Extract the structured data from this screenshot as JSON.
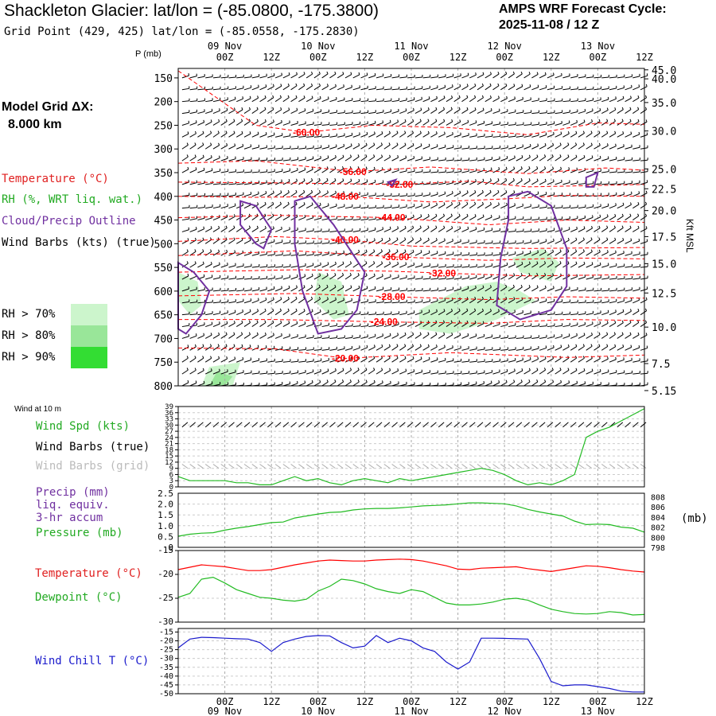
{
  "header": {
    "title": "Shackleton Glacier:  lat/lon = (-85.0800, -175.3800)",
    "grid_point": "Grid Point (429, 425) lat/lon = (-85.0558, -175.2830)",
    "cycle_title": "AMPS WRF Forecast Cycle:",
    "cycle_date": "2025-11-08 / 12  Z"
  },
  "legend": {
    "model_grid_label": "Model Grid ΔX:",
    "model_grid_value": "8.000 km",
    "temperature": "Temperature (°C)",
    "rh": "RH (%, WRT liq. wat.)",
    "cloud": "Cloud/Precip Outline",
    "wind_barbs": "Wind Barbs (kts) (true)",
    "rh70": "RH > 70%",
    "rh80": "RH > 80%",
    "rh90": "RH > 90%"
  },
  "colors": {
    "temperature": "#ff0000",
    "rh70": "#ccf5cc",
    "rh80": "#99e699",
    "rh90": "#33dd33",
    "cloud": "#7030a0",
    "wind_spd": "#22bb22",
    "grid_barbs": "#aaaaaa",
    "precip": "#7030a0",
    "pressure": "#22bb22",
    "dewpoint": "#22bb22",
    "wind_chill": "#1a1acc"
  },
  "time_axis": {
    "hour_labels": [
      "00Z",
      "12Z",
      "00Z",
      "12Z",
      "00Z",
      "12Z",
      "00Z",
      "12Z",
      "00Z",
      "12Z"
    ],
    "hour_values": [
      12,
      24,
      36,
      48,
      60,
      72,
      84,
      96,
      108,
      120
    ],
    "day_labels": [
      "09 Nov",
      "10 Nov",
      "11 Nov",
      "12 Nov",
      "13 Nov"
    ],
    "day_values": [
      12,
      36,
      60,
      84,
      108
    ],
    "range": [
      0,
      120
    ]
  },
  "chart_data": [
    {
      "type": "heatmap",
      "title": "Time-height cross section",
      "ylabel_left": "P (mb)",
      "ylabel_right": "Kft MSL",
      "ylim": [
        800,
        130
      ],
      "pressure_ticks": [
        150,
        200,
        250,
        300,
        350,
        400,
        450,
        500,
        550,
        600,
        650,
        700,
        750,
        800
      ],
      "height_ticks": [
        {
          "label": "45.0",
          "p": 133
        },
        {
          "label": "40.0",
          "p": 152
        },
        {
          "label": "35.0",
          "p": 202
        },
        {
          "label": "30.0",
          "p": 262
        },
        {
          "label": "25.0",
          "p": 342
        },
        {
          "label": "22.5",
          "p": 384
        },
        {
          "label": "20.0",
          "p": 430
        },
        {
          "label": "17.5",
          "p": 485
        },
        {
          "label": "15.0",
          "p": 542
        },
        {
          "label": "12.5",
          "p": 604
        },
        {
          "label": "10.0",
          "p": 676
        },
        {
          "label": "7.5",
          "p": 753
        },
        {
          "label": "5.15",
          "p": 810
        }
      ],
      "temperature_contours": [
        {
          "label": "-60.00",
          "t": [
            0,
            20,
            33,
            50,
            70,
            90,
            108,
            120
          ],
          "p": [
            135,
            250,
            265,
            250,
            255,
            270,
            245,
            248
          ],
          "label_t": 33,
          "label_p": 265
        },
        {
          "label": "-56.00",
          "t": [
            0,
            20,
            45,
            65,
            90,
            110,
            120
          ],
          "p": [
            330,
            325,
            348,
            338,
            352,
            340,
            345
          ],
          "label_t": 45,
          "label_p": 348
        },
        {
          "label": "-52.00",
          "t": [
            0,
            30,
            57,
            75,
            90,
            120
          ],
          "p": [
            370,
            372,
            375,
            368,
            380,
            375
          ],
          "label_t": 57,
          "label_p": 375
        },
        {
          "label": "-48.00",
          "t": [
            0,
            20,
            43,
            65,
            85,
            100,
            120
          ],
          "p": [
            400,
            402,
            400,
            412,
            405,
            398,
            400
          ],
          "label_t": 43,
          "label_p": 400
        },
        {
          "label": "-44.00",
          "t": [
            0,
            25,
            55,
            80,
            100,
            120
          ],
          "p": [
            445,
            440,
            445,
            460,
            450,
            455
          ],
          "label_t": 55,
          "label_p": 445
        },
        {
          "label": "-40.00",
          "t": [
            0,
            25,
            43,
            60,
            90,
            120
          ],
          "p": [
            495,
            485,
            492,
            505,
            510,
            508
          ],
          "label_t": 43,
          "label_p": 492
        },
        {
          "label": "-36.00",
          "t": [
            0,
            30,
            56,
            80,
            100,
            120
          ],
          "p": [
            525,
            515,
            528,
            535,
            530,
            532
          ],
          "label_t": 56,
          "label_p": 528
        },
        {
          "label": "-32.00",
          "t": [
            0,
            30,
            55,
            68,
            90,
            120
          ],
          "p": [
            560,
            555,
            558,
            562,
            568,
            565
          ],
          "label_t": 68,
          "label_p": 562
        },
        {
          "label": "-28.00",
          "t": [
            0,
            30,
            55,
            80,
            100,
            120
          ],
          "p": [
            610,
            605,
            612,
            618,
            612,
            615
          ],
          "label_t": 55,
          "label_p": 612
        },
        {
          "label": "-24.00",
          "t": [
            0,
            25,
            53,
            80,
            100,
            120
          ],
          "p": [
            660,
            660,
            665,
            668,
            660,
            662
          ],
          "label_t": 53,
          "label_p": 665
        },
        {
          "label": "-20.00",
          "t": [
            0,
            25,
            43,
            70,
            100,
            120
          ],
          "p": [
            720,
            722,
            742,
            730,
            740,
            735
          ],
          "label_t": 43,
          "label_p": 742
        }
      ],
      "rh_regions": [
        {
          "level": ">70%",
          "t": [
            0,
            5,
            6,
            3,
            0
          ],
          "p": [
            560,
            580,
            630,
            650,
            620
          ]
        },
        {
          "level": ">70%",
          "t": [
            36,
            42,
            44,
            40,
            35
          ],
          "p": [
            560,
            580,
            650,
            660,
            620
          ]
        },
        {
          "level": ">70%",
          "t": [
            62,
            74,
            82,
            88,
            92,
            82,
            70,
            62
          ],
          "p": [
            640,
            590,
            580,
            600,
            620,
            660,
            690,
            680
          ]
        },
        {
          "level": ">70%",
          "t": [
            86,
            94,
            98,
            96,
            88
          ],
          "p": [
            530,
            510,
            540,
            580,
            560
          ]
        },
        {
          "level": ">70%",
          "t": [
            8,
            16,
            14,
            6
          ],
          "p": [
            760,
            750,
            800,
            800
          ]
        },
        {
          "level": ">80%",
          "t": [
            10,
            14,
            12,
            8
          ],
          "p": [
            770,
            780,
            800,
            800
          ]
        }
      ],
      "cloud_outlines": [
        {
          "t": [
            0,
            4,
            8,
            6,
            2,
            0
          ],
          "p": [
            540,
            560,
            600,
            650,
            690,
            680
          ]
        },
        {
          "t": [
            16,
            20,
            24,
            22,
            20,
            16
          ],
          "p": [
            410,
            420,
            470,
            510,
            500,
            460
          ]
        },
        {
          "t": [
            30,
            34,
            40,
            48,
            46,
            42,
            36,
            32,
            30
          ],
          "p": [
            410,
            400,
            460,
            560,
            640,
            680,
            690,
            600,
            500
          ]
        },
        {
          "t": [
            54,
            56,
            55
          ],
          "p": [
            370,
            365,
            378
          ]
        },
        {
          "t": [
            85,
            90,
            96,
            100,
            100,
            96,
            88,
            82,
            83,
            85
          ],
          "p": [
            400,
            390,
            420,
            510,
            590,
            640,
            660,
            630,
            530,
            450
          ]
        },
        {
          "t": [
            105,
            108,
            107,
            105
          ],
          "p": [
            360,
            350,
            380,
            380
          ]
        }
      ],
      "barbs": {
        "t_step": 2,
        "p_levels": [
          150,
          175,
          200,
          225,
          250,
          275,
          300,
          325,
          350,
          375,
          400,
          425,
          450,
          475,
          500,
          525,
          550,
          575,
          600,
          625,
          650,
          675,
          700,
          725,
          750,
          775,
          800
        ]
      }
    },
    {
      "type": "line",
      "title": "Wind at 10 m",
      "legend": [
        "Wind Spd (kts)",
        "Wind Barbs (true)",
        "Wind Barbs (grid)"
      ],
      "y_ticks": [
        0,
        3,
        6,
        9,
        12,
        15,
        18,
        21,
        24,
        27,
        30,
        33,
        36,
        39
      ],
      "ylim": [
        0,
        39
      ],
      "series": [
        {
          "name": "Wind Spd (kts)",
          "t": [
            0,
            3,
            6,
            9,
            12,
            15,
            18,
            21,
            24,
            27,
            30,
            33,
            36,
            39,
            42,
            45,
            48,
            51,
            54,
            57,
            60,
            63,
            66,
            69,
            72,
            75,
            78,
            81,
            84,
            87,
            90,
            93,
            96,
            99,
            102,
            105,
            108,
            111,
            114,
            117,
            120
          ],
          "values": [
            5,
            3,
            3,
            3,
            3,
            2,
            2,
            1,
            1,
            3,
            5,
            3,
            4,
            2,
            1,
            3,
            4,
            3,
            2,
            4,
            3,
            4,
            5,
            6,
            7,
            8,
            9,
            8,
            6,
            3,
            1,
            2,
            1,
            3,
            6,
            24,
            27,
            29,
            32,
            35,
            38
          ]
        }
      ]
    },
    {
      "type": "line",
      "title": "Precip / Pressure",
      "legend": [
        "Precip (mm)",
        "liq. equiv.",
        "3-hr accum",
        "Pressure (mb)"
      ],
      "y_left_ticks": [
        "0",
        "0.5",
        "1.0",
        "1.5",
        "2.0",
        "2.5"
      ],
      "y_right_ticks": [
        "798",
        "800",
        "802",
        "804",
        "806",
        "808"
      ],
      "ylim_left": [
        0,
        2.5
      ],
      "ylim_right": [
        798,
        808.7
      ],
      "right_label": "(mb)",
      "series": [
        {
          "name": "Pressure (mb)",
          "t": [
            0,
            3,
            6,
            9,
            12,
            15,
            18,
            21,
            24,
            27,
            30,
            33,
            36,
            39,
            42,
            45,
            48,
            51,
            54,
            57,
            60,
            63,
            66,
            69,
            72,
            75,
            78,
            81,
            84,
            87,
            90,
            93,
            96,
            99,
            102,
            105,
            108,
            111,
            114,
            117,
            120
          ],
          "values": [
            800.2,
            800.6,
            800.8,
            800.9,
            801.4,
            801.8,
            802.1,
            802.5,
            802.9,
            803.0,
            803.8,
            804.2,
            804.6,
            804.9,
            805.0,
            805.4,
            805.6,
            805.7,
            805.7,
            805.8,
            806.0,
            806.2,
            806.3,
            806.4,
            806.6,
            806.8,
            806.8,
            806.7,
            806.6,
            806.2,
            805.5,
            805.0,
            804.6,
            804.2,
            803.2,
            802.5,
            802.6,
            802.5,
            802.0,
            801.8,
            801.0
          ]
        }
      ]
    },
    {
      "type": "line",
      "title": "Temperature / Dewpoint",
      "legend": [
        "Temperature (°C)",
        "Dewpoint (°C)"
      ],
      "y_ticks": [
        -15,
        -20,
        -25,
        -30
      ],
      "ylim": [
        -30,
        -15
      ],
      "series": [
        {
          "name": "Temperature (°C)",
          "t": [
            0,
            3,
            6,
            9,
            12,
            15,
            18,
            21,
            24,
            27,
            30,
            33,
            36,
            39,
            42,
            45,
            48,
            51,
            54,
            57,
            60,
            63,
            66,
            69,
            72,
            75,
            78,
            81,
            84,
            87,
            90,
            93,
            96,
            99,
            102,
            105,
            108,
            111,
            114,
            117,
            120
          ],
          "values": [
            -19.0,
            -18.5,
            -18.0,
            -18.2,
            -18.4,
            -18.8,
            -19.2,
            -19.2,
            -19.0,
            -18.5,
            -18.0,
            -17.6,
            -17.2,
            -17.0,
            -17.1,
            -17.2,
            -17.2,
            -17.0,
            -16.9,
            -16.8,
            -16.9,
            -17.2,
            -17.7,
            -18.2,
            -18.9,
            -19.0,
            -18.7,
            -18.6,
            -18.5,
            -18.4,
            -18.8,
            -19.1,
            -19.4,
            -19.0,
            -18.6,
            -18.2,
            -18.3,
            -18.6,
            -19.0,
            -19.3,
            -19.5
          ]
        },
        {
          "name": "Dewpoint (°C)",
          "t": [
            0,
            3,
            6,
            9,
            12,
            15,
            18,
            21,
            24,
            27,
            30,
            33,
            36,
            39,
            42,
            45,
            48,
            51,
            54,
            57,
            60,
            63,
            66,
            69,
            72,
            75,
            78,
            81,
            84,
            87,
            90,
            93,
            96,
            99,
            102,
            105,
            108,
            111,
            114,
            117,
            120
          ],
          "values": [
            -24.8,
            -24.0,
            -21.0,
            -20.6,
            -21.8,
            -23.2,
            -24.0,
            -24.8,
            -25.0,
            -25.4,
            -25.6,
            -25.2,
            -23.5,
            -22.5,
            -21.0,
            -21.3,
            -22.0,
            -23.0,
            -23.6,
            -24.0,
            -23.2,
            -23.6,
            -24.8,
            -26.0,
            -26.4,
            -26.4,
            -26.2,
            -25.8,
            -25.2,
            -25.0,
            -25.4,
            -26.4,
            -27.3,
            -27.8,
            -28.2,
            -28.3,
            -28.2,
            -27.8,
            -28.0,
            -28.5,
            -28.4
          ]
        }
      ]
    },
    {
      "type": "line",
      "title": "Wind Chill",
      "legend": [
        "Wind Chill T (°C)"
      ],
      "y_ticks": [
        -15,
        -20,
        -25,
        -30,
        -35,
        -40,
        -45,
        -50
      ],
      "ylim": [
        -50,
        -13
      ],
      "series": [
        {
          "name": "Wind Chill T (°C)",
          "t": [
            0,
            3,
            6,
            9,
            12,
            15,
            18,
            21,
            24,
            27,
            30,
            33,
            36,
            39,
            42,
            45,
            48,
            51,
            54,
            57,
            60,
            63,
            66,
            69,
            72,
            75,
            78,
            81,
            84,
            87,
            90,
            93,
            96,
            99,
            102,
            105,
            108,
            111,
            114,
            117,
            120
          ],
          "values": [
            -24,
            -19,
            -18,
            -18.2,
            -18.5,
            -18.8,
            -19,
            -21,
            -26,
            -21,
            -19,
            -17.5,
            -17,
            -17.2,
            -21,
            -24,
            -23,
            -17,
            -21,
            -18.5,
            -20,
            -24,
            -26,
            -32,
            -36,
            -32,
            -18.5,
            -18.5,
            -18.6,
            -18.8,
            -19,
            -30,
            -43,
            -45.5,
            -45,
            -45,
            -46,
            -47,
            -48.5,
            -49,
            -49
          ]
        }
      ]
    }
  ]
}
